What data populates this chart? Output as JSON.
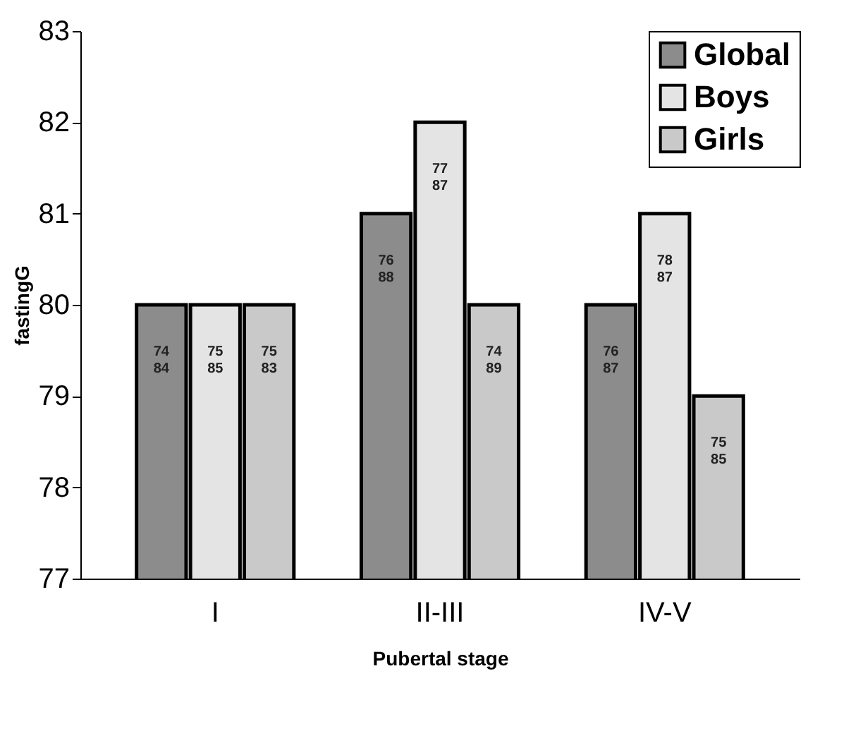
{
  "chart_data": {
    "type": "bar",
    "xlabel": "Pubertal stage",
    "ylabel": "fastingG",
    "categories": [
      "I",
      "II-III",
      "IV-V"
    ],
    "series": [
      {
        "name": "Global",
        "color": "#8c8c8c",
        "values": [
          80,
          81,
          80
        ]
      },
      {
        "name": "Boys",
        "color": "#e4e4e4",
        "values": [
          80,
          82,
          81
        ]
      },
      {
        "name": "Girls",
        "color": "#c9c9c9",
        "values": [
          80,
          80,
          79
        ]
      }
    ],
    "annotations": [
      "74 84",
      "75 85",
      "75 83",
      "76 88",
      "77 87",
      "74 89",
      "76 87",
      "78 87",
      "75 85"
    ],
    "ylim": [
      77,
      83
    ],
    "yticks": [
      77,
      78,
      79,
      80,
      81,
      82,
      83
    ],
    "grid": false,
    "legend": "top right"
  }
}
